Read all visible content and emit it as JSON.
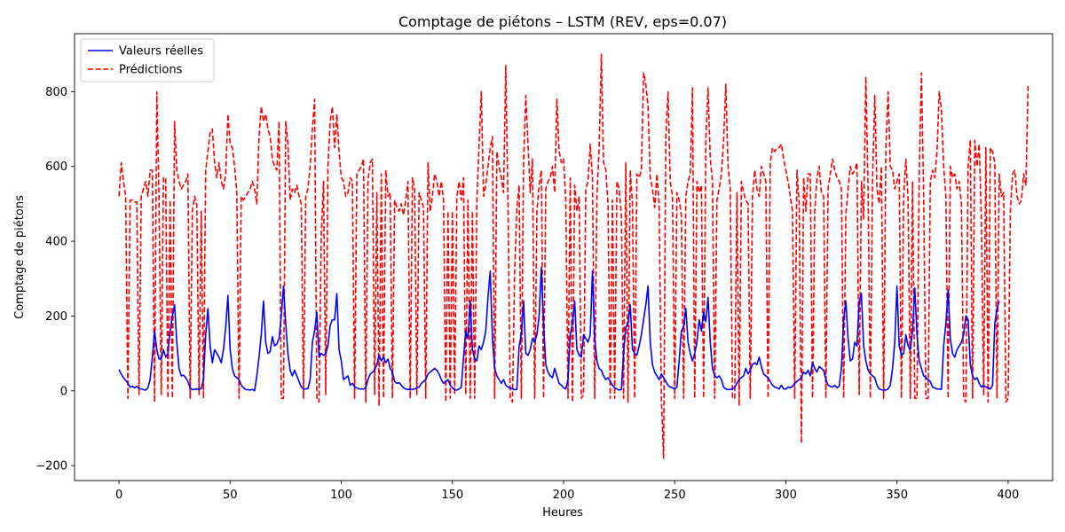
{
  "chart_data": {
    "type": "line",
    "title": "Comptage de piétons – LSTM (REV, eps=0.07)",
    "xlabel": "Heures",
    "ylabel": "Comptage de piétons",
    "xlim": [
      -20,
      420
    ],
    "ylim": [
      -240,
      955
    ],
    "xticks": [
      0,
      50,
      100,
      150,
      200,
      250,
      300,
      350,
      400
    ],
    "yticks": [
      -200,
      0,
      200,
      400,
      600,
      800
    ],
    "legend_position": "top-left",
    "grid": false,
    "series": [
      {
        "name": "Valeurs réelles",
        "color": "#0000ff",
        "dash": "solid",
        "x_start": 0,
        "x_step": 1,
        "values": [
          57,
          45,
          35,
          28,
          20,
          10,
          12,
          8,
          12,
          6,
          5,
          3,
          2,
          8,
          30,
          90,
          160,
          110,
          85,
          85,
          110,
          90,
          100,
          160,
          200,
          230,
          130,
          60,
          40,
          42,
          35,
          25,
          8,
          3,
          4,
          5,
          4,
          6,
          30,
          150,
          220,
          120,
          75,
          110,
          100,
          90,
          75,
          110,
          170,
          255,
          110,
          60,
          40,
          35,
          30,
          15,
          8,
          3,
          3,
          2,
          4,
          0,
          40,
          90,
          150,
          240,
          130,
          100,
          105,
          145,
          120,
          125,
          140,
          200,
          280,
          180,
          100,
          55,
          40,
          55,
          40,
          25,
          10,
          5,
          5,
          6,
          30,
          130,
          160,
          210,
          90,
          100,
          95,
          100,
          120,
          175,
          190,
          190,
          260,
          110,
          80,
          30,
          35,
          40,
          15,
          20,
          10,
          8,
          5,
          5,
          5,
          8,
          30,
          45,
          50,
          55,
          70,
          95,
          80,
          90,
          75,
          85,
          60,
          50,
          25,
          20,
          22,
          15,
          8,
          5,
          3,
          5,
          3,
          5,
          8,
          10,
          20,
          25,
          30,
          45,
          50,
          55,
          60,
          55,
          45,
          30,
          20,
          25,
          30,
          15,
          8,
          3,
          2,
          5,
          10,
          90,
          160,
          140,
          240,
          110,
          85,
          80,
          120,
          110,
          130,
          160,
          250,
          320,
          140,
          60,
          40,
          30,
          20,
          30,
          15,
          10,
          8,
          5,
          3,
          4,
          120,
          150,
          240,
          100,
          95,
          110,
          140,
          130,
          150,
          200,
          330,
          180,
          70,
          50,
          40,
          35,
          60,
          40,
          20,
          15,
          8,
          5,
          30,
          150,
          180,
          240,
          110,
          95,
          90,
          150,
          140,
          130,
          150,
          320,
          140,
          80,
          60,
          55,
          40,
          30,
          35,
          25,
          15,
          8,
          5,
          2,
          4,
          100,
          170,
          180,
          230,
          110,
          100,
          95,
          120,
          150,
          190,
          230,
          280,
          130,
          70,
          50,
          40,
          30,
          45,
          35,
          25,
          15,
          10,
          8,
          5,
          10,
          80,
          160,
          170,
          220,
          130,
          100,
          80,
          100,
          130,
          190,
          160,
          210,
          185,
          250,
          130,
          60,
          40,
          35,
          40,
          30,
          10,
          5,
          3,
          4,
          5,
          10,
          20,
          30,
          35,
          40,
          60,
          45,
          55,
          70,
          75,
          70,
          90,
          65,
          45,
          40,
          35,
          25,
          15,
          10,
          8,
          5,
          15,
          5,
          5,
          10,
          8,
          12,
          20,
          25,
          30,
          35,
          50,
          45,
          55,
          40,
          75,
          60,
          50,
          65,
          60,
          55,
          30,
          15,
          12,
          10,
          15,
          8,
          12,
          60,
          190,
          240,
          140,
          80,
          85,
          130,
          120,
          240,
          260,
          120,
          80,
          55,
          45,
          40,
          35,
          15,
          5,
          3,
          2,
          2,
          5,
          15,
          60,
          130,
          280,
          120,
          95,
          100,
          150,
          120,
          110,
          160,
          275,
          150,
          80,
          60,
          40,
          35,
          30,
          25,
          10,
          8,
          5,
          5,
          4,
          120,
          180,
          270,
          140,
          100,
          90,
          110,
          120,
          130,
          150,
          200,
          190,
          70,
          40,
          30,
          35,
          20,
          10,
          15,
          10,
          8,
          5,
          15,
          180,
          220,
          240
        ]
      },
      {
        "name": "Prédictions",
        "color": "#ff0000",
        "dash": "dashed",
        "x_start": 0,
        "x_step": 1,
        "values": [
          520,
          610,
          560,
          520,
          -20,
          510,
          510,
          505,
          505,
          -10,
          520,
          540,
          560,
          520,
          590,
          590,
          -30,
          800,
          520,
          -10,
          570,
          570,
          -20,
          510,
          -20,
          720,
          590,
          560,
          540,
          550,
          560,
          580,
          -20,
          480,
          520,
          500,
          -10,
          480,
          -20,
          590,
          640,
          690,
          700,
          610,
          570,
          610,
          560,
          540,
          580,
          740,
          660,
          650,
          600,
          530,
          -20,
          520,
          510,
          520,
          530,
          540,
          560,
          540,
          500,
          680,
          760,
          720,
          740,
          700,
          680,
          620,
          600,
          590,
          720,
          -20,
          -20,
          720,
          660,
          510,
          540,
          530,
          550,
          520,
          500,
          -20,
          520,
          540,
          600,
          700,
          780,
          -20,
          -30,
          420,
          560,
          -10,
          600,
          720,
          760,
          650,
          740,
          640,
          570,
          560,
          520,
          530,
          570,
          560,
          -20,
          580,
          590,
          600,
          620,
          -30,
          560,
          610,
          620,
          -10,
          530,
          -40,
          580,
          -20,
          590,
          520,
          530,
          -20,
          510,
          490,
          480,
          500,
          470,
          510,
          560,
          -20,
          570,
          540,
          -10,
          530,
          510,
          490,
          -20,
          610,
          480,
          520,
          580,
          560,
          520,
          560,
          510,
          -30,
          480,
          -20,
          480,
          -10,
          520,
          560,
          510,
          570,
          -10,
          510,
          -20,
          480,
          -20,
          510,
          660,
          800,
          520,
          550,
          600,
          650,
          680,
          -20,
          640,
          600,
          570,
          530,
          870,
          500,
          -20,
          -30,
          320,
          490,
          550,
          -20,
          610,
          790,
          660,
          530,
          620,
          -20,
          480,
          550,
          590,
          -20,
          540,
          560,
          570,
          600,
          530,
          780,
          640,
          610,
          620,
          510,
          -20,
          570,
          -30,
          550,
          480,
          520,
          -20,
          -10,
          540,
          560,
          660,
          570,
          -20,
          520,
          650,
          900,
          610,
          590,
          500,
          -20,
          510,
          -20,
          560,
          540,
          470,
          -20,
          610,
          -30,
          590,
          500,
          -20,
          580,
          570,
          590,
          850,
          820,
          760,
          570,
          540,
          490,
          580,
          500,
          -20,
          -180,
          680,
          800,
          560,
          520,
          -20,
          530,
          510,
          470,
          -20,
          520,
          560,
          580,
          810,
          -20,
          560,
          530,
          550,
          -20,
          670,
          810,
          620,
          560,
          -20,
          510,
          540,
          580,
          670,
          820,
          600,
          540,
          -20,
          -20,
          530,
          -40,
          560,
          530,
          510,
          500,
          -20,
          520,
          590,
          540,
          520,
          600,
          580,
          560,
          -20,
          610,
          650,
          640,
          650,
          650,
          660,
          620,
          590,
          560,
          520,
          480,
          -20,
          590,
          500,
          -140,
          570,
          480,
          580,
          580,
          -20,
          480,
          570,
          600,
          530,
          520,
          -20,
          540,
          580,
          620,
          590,
          570,
          560,
          540,
          -20,
          470,
          540,
          600,
          580,
          590,
          610,
          -10,
          560,
          460,
          840,
          540,
          -20,
          560,
          790,
          540,
          500,
          600,
          -20,
          650,
          800,
          600,
          590,
          540,
          560,
          580,
          -20,
          520,
          620,
          510,
          -20,
          560,
          -20,
          -20,
          580,
          850,
          520,
          -20,
          -20,
          560,
          590,
          570,
          640,
          800,
          750,
          600,
          520,
          -20,
          600,
          570,
          580,
          540,
          560,
          500,
          -20,
          -30,
          600,
          670,
          -20,
          670,
          600,
          660,
          450,
          -10,
          650,
          -30,
          650,
          640,
          610,
          -20,
          580,
          520,
          530,
          -30,
          -20,
          480,
          580,
          590,
          520,
          500,
          510,
          580,
          550,
          820
        ]
      }
    ]
  }
}
